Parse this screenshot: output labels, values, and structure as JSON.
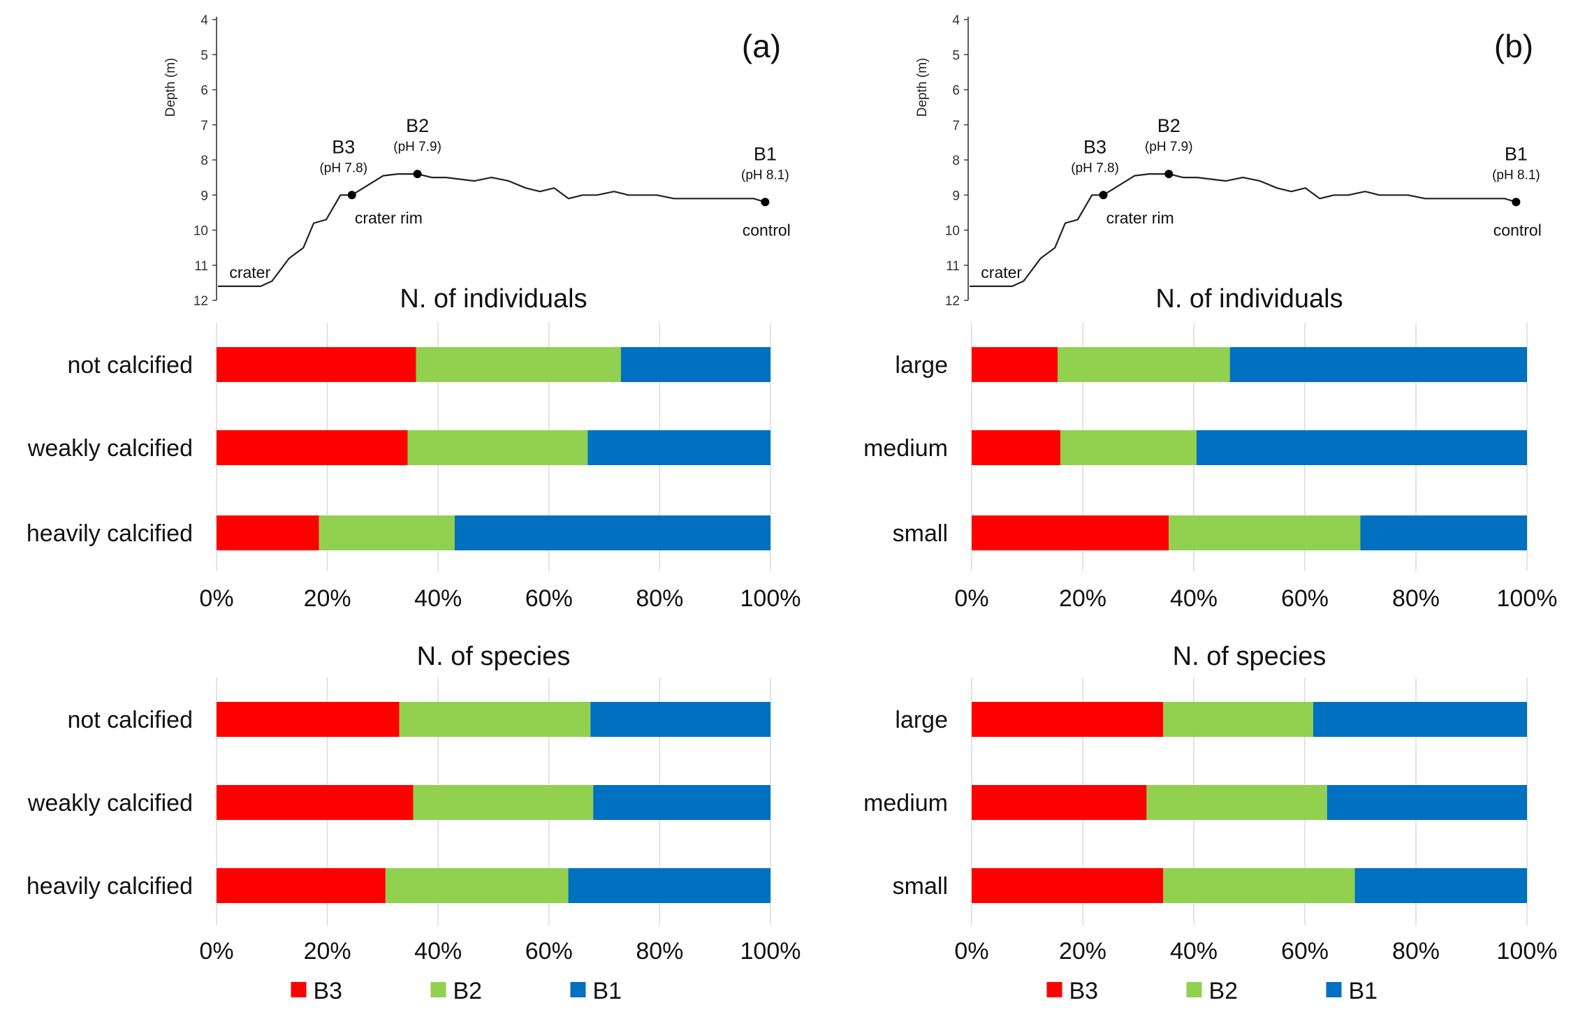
{
  "colors": {
    "B3": "#ff0000",
    "B2": "#92d050",
    "B1": "#0070c0",
    "grid": "#d9d9d9",
    "axis": "#333333",
    "profile": "#222222"
  },
  "chart_data": [
    {
      "type": "line",
      "panel": "(a)",
      "panel_label": "(a)",
      "ylabel": "Depth (m)",
      "ylim": [
        4,
        12
      ],
      "y_ticks": [
        "4",
        "5",
        "6",
        "7",
        "8",
        "9",
        "10",
        "11",
        "12"
      ],
      "x_unit": "relative distance along transect (0-1)",
      "profile": [
        [
          0.0,
          11.6
        ],
        [
          0.075,
          11.6
        ],
        [
          0.095,
          11.45
        ],
        [
          0.125,
          10.8
        ],
        [
          0.15,
          10.5
        ],
        [
          0.168,
          9.8
        ],
        [
          0.19,
          9.7
        ],
        [
          0.215,
          9.0
        ],
        [
          0.235,
          9.0
        ],
        [
          0.265,
          8.7
        ],
        [
          0.29,
          8.45
        ],
        [
          0.315,
          8.4
        ],
        [
          0.35,
          8.4
        ],
        [
          0.375,
          8.5
        ],
        [
          0.4,
          8.5
        ],
        [
          0.425,
          8.55
        ],
        [
          0.45,
          8.6
        ],
        [
          0.48,
          8.5
        ],
        [
          0.51,
          8.6
        ],
        [
          0.54,
          8.8
        ],
        [
          0.565,
          8.9
        ],
        [
          0.59,
          8.8
        ],
        [
          0.615,
          9.1
        ],
        [
          0.64,
          9.0
        ],
        [
          0.665,
          9.0
        ],
        [
          0.695,
          8.9
        ],
        [
          0.72,
          9.0
        ],
        [
          0.77,
          9.0
        ],
        [
          0.8,
          9.1
        ],
        [
          0.85,
          9.1
        ],
        [
          0.9,
          9.1
        ],
        [
          0.94,
          9.1
        ],
        [
          0.96,
          9.2
        ]
      ],
      "stations": [
        {
          "name": "B3",
          "ph": "(pH 7.8)",
          "x": 0.235,
          "depth": 9.0
        },
        {
          "name": "B2",
          "ph": "(pH 7.9)",
          "x": 0.35,
          "depth": 8.4
        },
        {
          "name": "B1",
          "ph": "(pH 8.1)",
          "x": 0.96,
          "depth": 9.2
        }
      ],
      "annotations": [
        {
          "text": "crater",
          "x": 0.02,
          "depth": 11.2
        },
        {
          "text": "crater rim",
          "x": 0.24,
          "depth": 9.65
        },
        {
          "text": "control",
          "x": 0.92,
          "depth": 10.0
        }
      ]
    },
    {
      "type": "bar",
      "orientation": "horizontal-stacked-percent",
      "panel": "(a)",
      "title": "N. of individuals",
      "categories": [
        "not calcified",
        "weakly calcified",
        "heavily calcified"
      ],
      "series": [
        {
          "name": "B3",
          "values": [
            36,
            34.5,
            18.5
          ]
        },
        {
          "name": "B2",
          "values": [
            37,
            32.5,
            24.5
          ]
        },
        {
          "name": "B1",
          "values": [
            27,
            33,
            57
          ]
        }
      ],
      "xlim": [
        0,
        100
      ],
      "x_ticks": [
        "0%",
        "20%",
        "40%",
        "60%",
        "80%",
        "100%"
      ]
    },
    {
      "type": "bar",
      "orientation": "horizontal-stacked-percent",
      "panel": "(a)",
      "title": "N. of species",
      "categories": [
        "not calcified",
        "weakly calcified",
        "heavily calcified"
      ],
      "series": [
        {
          "name": "B3",
          "values": [
            33,
            35.5,
            30.5
          ]
        },
        {
          "name": "B2",
          "values": [
            34.5,
            32.5,
            33
          ]
        },
        {
          "name": "B1",
          "values": [
            32.5,
            32,
            36.5
          ]
        }
      ],
      "xlim": [
        0,
        100
      ],
      "x_ticks": [
        "0%",
        "20%",
        "40%",
        "60%",
        "80%",
        "100%"
      ]
    },
    {
      "type": "line",
      "panel": "(b)",
      "panel_label": "(b)",
      "ylabel": "Depth (m)",
      "ylim": [
        4,
        12
      ],
      "y_ticks": [
        "4",
        "5",
        "6",
        "7",
        "8",
        "9",
        "10",
        "11",
        "12"
      ],
      "x_unit": "relative distance along transect (0-1)",
      "profile": [
        [
          0.0,
          11.6
        ],
        [
          0.075,
          11.6
        ],
        [
          0.095,
          11.45
        ],
        [
          0.125,
          10.8
        ],
        [
          0.15,
          10.5
        ],
        [
          0.168,
          9.8
        ],
        [
          0.19,
          9.7
        ],
        [
          0.215,
          9.0
        ],
        [
          0.235,
          9.0
        ],
        [
          0.265,
          8.7
        ],
        [
          0.29,
          8.45
        ],
        [
          0.315,
          8.4
        ],
        [
          0.35,
          8.4
        ],
        [
          0.375,
          8.5
        ],
        [
          0.4,
          8.5
        ],
        [
          0.425,
          8.55
        ],
        [
          0.45,
          8.6
        ],
        [
          0.48,
          8.5
        ],
        [
          0.51,
          8.6
        ],
        [
          0.54,
          8.8
        ],
        [
          0.565,
          8.9
        ],
        [
          0.59,
          8.8
        ],
        [
          0.615,
          9.1
        ],
        [
          0.64,
          9.0
        ],
        [
          0.665,
          9.0
        ],
        [
          0.695,
          8.9
        ],
        [
          0.72,
          9.0
        ],
        [
          0.77,
          9.0
        ],
        [
          0.8,
          9.1
        ],
        [
          0.85,
          9.1
        ],
        [
          0.9,
          9.1
        ],
        [
          0.94,
          9.1
        ],
        [
          0.96,
          9.2
        ]
      ],
      "stations": [
        {
          "name": "B3",
          "ph": "(pH 7.8)",
          "x": 0.235,
          "depth": 9.0
        },
        {
          "name": "B2",
          "ph": "(pH 7.9)",
          "x": 0.35,
          "depth": 8.4
        },
        {
          "name": "B1",
          "ph": "(pH 8.1)",
          "x": 0.96,
          "depth": 9.2
        }
      ],
      "annotations": [
        {
          "text": "crater",
          "x": 0.02,
          "depth": 11.2
        },
        {
          "text": "crater rim",
          "x": 0.24,
          "depth": 9.65
        },
        {
          "text": "control",
          "x": 0.92,
          "depth": 10.0
        }
      ]
    },
    {
      "type": "bar",
      "orientation": "horizontal-stacked-percent",
      "panel": "(b)",
      "title": "N. of individuals",
      "categories": [
        "large",
        "medium",
        "small"
      ],
      "series": [
        {
          "name": "B3",
          "values": [
            15.5,
            16,
            35.5
          ]
        },
        {
          "name": "B2",
          "values": [
            31,
            24.5,
            34.5
          ]
        },
        {
          "name": "B1",
          "values": [
            53.5,
            59.5,
            30
          ]
        }
      ],
      "xlim": [
        0,
        100
      ],
      "x_ticks": [
        "0%",
        "20%",
        "40%",
        "60%",
        "80%",
        "100%"
      ]
    },
    {
      "type": "bar",
      "orientation": "horizontal-stacked-percent",
      "panel": "(b)",
      "title": "N. of species",
      "categories": [
        "large",
        "medium",
        "small"
      ],
      "series": [
        {
          "name": "B3",
          "values": [
            34.5,
            31.5,
            34.5
          ]
        },
        {
          "name": "B2",
          "values": [
            27,
            32.5,
            34.5
          ]
        },
        {
          "name": "B1",
          "values": [
            38.5,
            36,
            31
          ]
        }
      ],
      "xlim": [
        0,
        100
      ],
      "x_ticks": [
        "0%",
        "20%",
        "40%",
        "60%",
        "80%",
        "100%"
      ]
    }
  ],
  "legends": [
    {
      "panel": "(a)",
      "entries": [
        "B3",
        "B2",
        "B1"
      ]
    },
    {
      "panel": "(b)",
      "entries": [
        "B3",
        "B2",
        "B1"
      ]
    }
  ]
}
